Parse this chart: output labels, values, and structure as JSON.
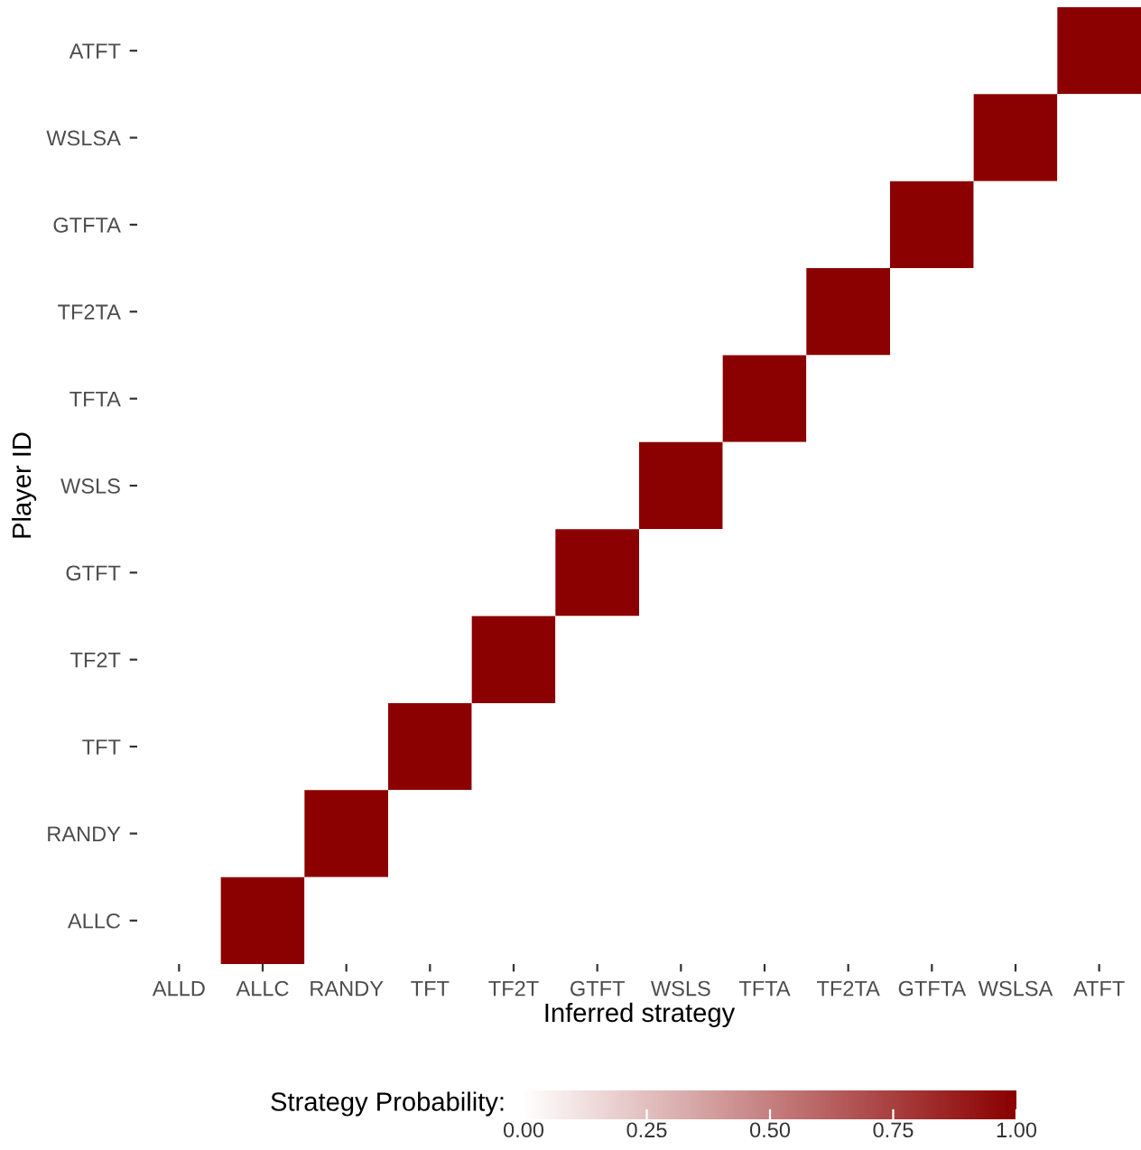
{
  "chart_data": {
    "type": "heatmap",
    "xlabel": "Inferred strategy",
    "ylabel": "Player ID",
    "clabel": "Strategy Probability:",
    "categories": [
      "ALLD",
      "ALLC",
      "RANDY",
      "TFT",
      "TF2T",
      "GTFT",
      "WSLS",
      "TFTA",
      "TF2TA",
      "GTFTA",
      "WSLSA",
      "ATFT"
    ],
    "y_categories": [
      "ATFT",
      "WSLSA",
      "GTFTA",
      "TF2TA",
      "TFTA",
      "WSLS",
      "GTFT",
      "TF2T",
      "TFT",
      "RANDY",
      "ALLC"
    ],
    "cells": [
      [
        0,
        0,
        0,
        0,
        0,
        0,
        0,
        0,
        0,
        0,
        0,
        1
      ],
      [
        0,
        0,
        0,
        0,
        0,
        0,
        0,
        0,
        0,
        0,
        1,
        0
      ],
      [
        0,
        0,
        0,
        0,
        0,
        0,
        0,
        0,
        0,
        1,
        0,
        0
      ],
      [
        0,
        0,
        0,
        0,
        0,
        0,
        0,
        0,
        1,
        0,
        0,
        0
      ],
      [
        0,
        0,
        0,
        0,
        0,
        0,
        0,
        1,
        0,
        0,
        0,
        0
      ],
      [
        0,
        0,
        0,
        0,
        0,
        0,
        1,
        0,
        0,
        0,
        0,
        0
      ],
      [
        0,
        0,
        0,
        0,
        0,
        1,
        0,
        0,
        0,
        0,
        0,
        0
      ],
      [
        0,
        0,
        0,
        0,
        1,
        0,
        0,
        0,
        0,
        0,
        0,
        0
      ],
      [
        0,
        0,
        0,
        1,
        0,
        0,
        0,
        0,
        0,
        0,
        0,
        0
      ],
      [
        0,
        0,
        1,
        0,
        0,
        0,
        0,
        0,
        0,
        0,
        0,
        0
      ],
      [
        0,
        1,
        0,
        0,
        0,
        0,
        0,
        0,
        0,
        0,
        0,
        0
      ]
    ],
    "colors": [
      "#ffffff",
      "#8b0000"
    ],
    "clim": [
      0,
      1
    ],
    "cticks": [
      {
        "value": 0,
        "label": "0.00"
      },
      {
        "value": 0.25,
        "label": "0.25"
      },
      {
        "value": 0.5,
        "label": "0.50"
      },
      {
        "value": 0.75,
        "label": "0.75"
      },
      {
        "value": 1,
        "label": "1.00"
      }
    ],
    "grid": false
  }
}
